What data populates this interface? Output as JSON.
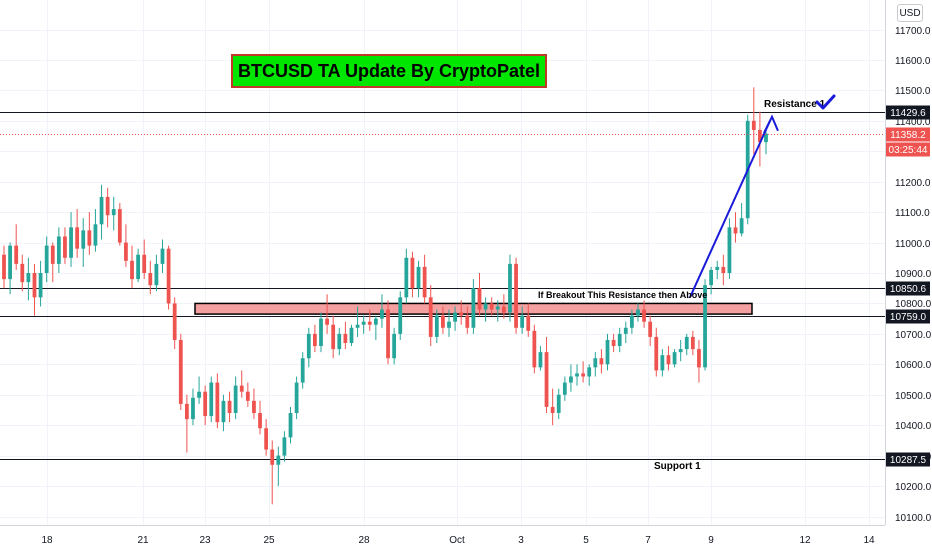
{
  "title": "BTCUSD TA Update By CryptoPatel",
  "currency_button": "USD",
  "countdown": "03:25:44",
  "annotations": {
    "resistance1": "Resistance 1",
    "breakout": "If Breakout This Resistance then  Above",
    "support1": "Support 1"
  },
  "colors": {
    "up": "#26a69a",
    "down": "#ef5350",
    "title_bg": "#00e600",
    "title_border": "#c0392b",
    "zone_fill": "#f4a0a0",
    "trendline": "#1a1adb",
    "check": "#1a1adb"
  },
  "chart_data": {
    "type": "candlestick",
    "symbol": "BTCUSD",
    "ylim": [
      10060,
      11780
    ],
    "y_ticks": [
      10100,
      10200,
      10300,
      10400,
      10500,
      10600,
      10700,
      10800,
      10900,
      11000,
      11100,
      11200,
      11300,
      11400,
      11500,
      11600,
      11700
    ],
    "x_tick_labels": [
      "18",
      "21",
      "23",
      "25",
      "28",
      "Oct",
      "3",
      "5",
      "7",
      "9",
      "12",
      "14"
    ],
    "horizontal_levels": [
      {
        "value": 11429.6,
        "label": "11429.6"
      },
      {
        "value": 10850.6,
        "label": "10850.6"
      },
      {
        "value": 10759.0,
        "label": "10759.0"
      },
      {
        "value": 10287.5,
        "label": "10287.5"
      }
    ],
    "last_price": {
      "value": 11358.2,
      "label": "11358.2"
    },
    "resistance_zone": [
      10765,
      10800
    ],
    "trendline": {
      "from": 10820,
      "to": 11400
    },
    "candles": [
      [
        10960,
        10990,
        10850,
        10880
      ],
      [
        10880,
        11000,
        10830,
        10990
      ],
      [
        10990,
        11060,
        10910,
        10930
      ],
      [
        10930,
        10960,
        10840,
        10870
      ],
      [
        10870,
        10950,
        10810,
        10900
      ],
      [
        10900,
        10930,
        10760,
        10820
      ],
      [
        10820,
        10940,
        10790,
        10900
      ],
      [
        10900,
        11020,
        10870,
        10990
      ],
      [
        10990,
        11000,
        10870,
        10930
      ],
      [
        10930,
        11050,
        10900,
        11020
      ],
      [
        11020,
        11050,
        10930,
        10950
      ],
      [
        10950,
        11100,
        10920,
        11050
      ],
      [
        11050,
        11110,
        10950,
        10980
      ],
      [
        10980,
        11080,
        10920,
        11040
      ],
      [
        11040,
        11100,
        10960,
        10990
      ],
      [
        10990,
        11110,
        10970,
        11060
      ],
      [
        11060,
        11190,
        11010,
        11150
      ],
      [
        11150,
        11180,
        11050,
        11090
      ],
      [
        11090,
        11150,
        11040,
        11110
      ],
      [
        11110,
        11130,
        10990,
        11000
      ],
      [
        11000,
        11060,
        10920,
        10940
      ],
      [
        10940,
        10990,
        10850,
        10880
      ],
      [
        10880,
        10980,
        10870,
        10960
      ],
      [
        10960,
        11010,
        10880,
        10900
      ],
      [
        10900,
        10940,
        10830,
        10860
      ],
      [
        10860,
        10960,
        10840,
        10930
      ],
      [
        10930,
        11010,
        10900,
        10980
      ],
      [
        10980,
        10990,
        10780,
        10800
      ],
      [
        10800,
        10820,
        10650,
        10680
      ],
      [
        10680,
        10700,
        10450,
        10470
      ],
      [
        10470,
        10500,
        10310,
        10420
      ],
      [
        10420,
        10520,
        10400,
        10490
      ],
      [
        10490,
        10560,
        10470,
        10510
      ],
      [
        10510,
        10530,
        10400,
        10430
      ],
      [
        10430,
        10560,
        10410,
        10540
      ],
      [
        10540,
        10570,
        10390,
        10410
      ],
      [
        10410,
        10500,
        10380,
        10480
      ],
      [
        10480,
        10510,
        10410,
        10440
      ],
      [
        10440,
        10560,
        10420,
        10530
      ],
      [
        10530,
        10580,
        10490,
        10510
      ],
      [
        10510,
        10540,
        10460,
        10480
      ],
      [
        10480,
        10520,
        10420,
        10440
      ],
      [
        10440,
        10480,
        10370,
        10390
      ],
      [
        10390,
        10420,
        10300,
        10320
      ],
      [
        10320,
        10350,
        10140,
        10270
      ],
      [
        10270,
        10330,
        10200,
        10300
      ],
      [
        10300,
        10380,
        10280,
        10360
      ],
      [
        10360,
        10460,
        10340,
        10440
      ],
      [
        10440,
        10560,
        10420,
        10540
      ],
      [
        10540,
        10640,
        10520,
        10620
      ],
      [
        10620,
        10720,
        10590,
        10700
      ],
      [
        10700,
        10730,
        10640,
        10660
      ],
      [
        10660,
        10770,
        10640,
        10750
      ],
      [
        10750,
        10830,
        10700,
        10730
      ],
      [
        10730,
        10760,
        10620,
        10650
      ],
      [
        10650,
        10720,
        10630,
        10700
      ],
      [
        10700,
        10740,
        10650,
        10670
      ],
      [
        10670,
        10730,
        10660,
        10720
      ],
      [
        10720,
        10790,
        10690,
        10730
      ],
      [
        10730,
        10760,
        10700,
        10740
      ],
      [
        10740,
        10780,
        10710,
        10730
      ],
      [
        10730,
        10760,
        10680,
        10750
      ],
      [
        10750,
        10830,
        10720,
        10780
      ],
      [
        10780,
        10810,
        10600,
        10620
      ],
      [
        10620,
        10720,
        10600,
        10700
      ],
      [
        10700,
        10840,
        10680,
        10820
      ],
      [
        10820,
        10980,
        10800,
        10950
      ],
      [
        10950,
        10970,
        10820,
        10850
      ],
      [
        10850,
        10940,
        10820,
        10920
      ],
      [
        10920,
        10960,
        10800,
        10820
      ],
      [
        10820,
        10860,
        10660,
        10690
      ],
      [
        10690,
        10780,
        10670,
        10760
      ],
      [
        10760,
        10790,
        10700,
        10720
      ],
      [
        10720,
        10780,
        10690,
        10740
      ],
      [
        10740,
        10790,
        10710,
        10770
      ],
      [
        10770,
        10810,
        10730,
        10760
      ],
      [
        10760,
        10790,
        10700,
        10720
      ],
      [
        10720,
        10880,
        10700,
        10850
      ],
      [
        10850,
        10900,
        10760,
        10780
      ],
      [
        10780,
        10820,
        10740,
        10800
      ],
      [
        10800,
        10820,
        10760,
        10780
      ],
      [
        10780,
        10810,
        10740,
        10790
      ],
      [
        10790,
        10830,
        10750,
        10770
      ],
      [
        10770,
        10960,
        10740,
        10930
      ],
      [
        10930,
        10950,
        10700,
        10720
      ],
      [
        10720,
        10790,
        10700,
        10760
      ],
      [
        10760,
        10800,
        10690,
        10710
      ],
      [
        10710,
        10730,
        10570,
        10590
      ],
      [
        10590,
        10660,
        10580,
        10640
      ],
      [
        10640,
        10690,
        10440,
        10460
      ],
      [
        10460,
        10520,
        10400,
        10440
      ],
      [
        10440,
        10520,
        10420,
        10500
      ],
      [
        10500,
        10560,
        10480,
        10540
      ],
      [
        10540,
        10600,
        10510,
        10560
      ],
      [
        10560,
        10600,
        10530,
        10570
      ],
      [
        10570,
        10610,
        10540,
        10560
      ],
      [
        10560,
        10600,
        10530,
        10590
      ],
      [
        10590,
        10640,
        10560,
        10620
      ],
      [
        10620,
        10650,
        10570,
        10600
      ],
      [
        10600,
        10700,
        10580,
        10680
      ],
      [
        10680,
        10700,
        10640,
        10660
      ],
      [
        10660,
        10720,
        10640,
        10700
      ],
      [
        10700,
        10740,
        10670,
        10720
      ],
      [
        10720,
        10780,
        10700,
        10760
      ],
      [
        10760,
        10800,
        10740,
        10780
      ],
      [
        10780,
        10810,
        10720,
        10740
      ],
      [
        10740,
        10760,
        10660,
        10690
      ],
      [
        10690,
        10720,
        10560,
        10580
      ],
      [
        10580,
        10650,
        10560,
        10630
      ],
      [
        10630,
        10660,
        10580,
        10600
      ],
      [
        10600,
        10650,
        10590,
        10640
      ],
      [
        10640,
        10680,
        10610,
        10650
      ],
      [
        10650,
        10700,
        10630,
        10690
      ],
      [
        10690,
        10710,
        10630,
        10650
      ],
      [
        10650,
        10680,
        10540,
        10590
      ],
      [
        10590,
        10880,
        10580,
        10860
      ],
      [
        10860,
        10920,
        10830,
        10910
      ],
      [
        10910,
        10940,
        10880,
        10920
      ],
      [
        10920,
        10960,
        10860,
        10900
      ],
      [
        10900,
        11080,
        10880,
        11050
      ],
      [
        11050,
        11100,
        11000,
        11030
      ],
      [
        11030,
        11130,
        11020,
        11080
      ],
      [
        11080,
        11420,
        11060,
        11400
      ],
      [
        11400,
        11510,
        11290,
        11370
      ],
      [
        11370,
        11430,
        11250,
        11330
      ],
      [
        11330,
        11370,
        11290,
        11358
      ]
    ]
  }
}
